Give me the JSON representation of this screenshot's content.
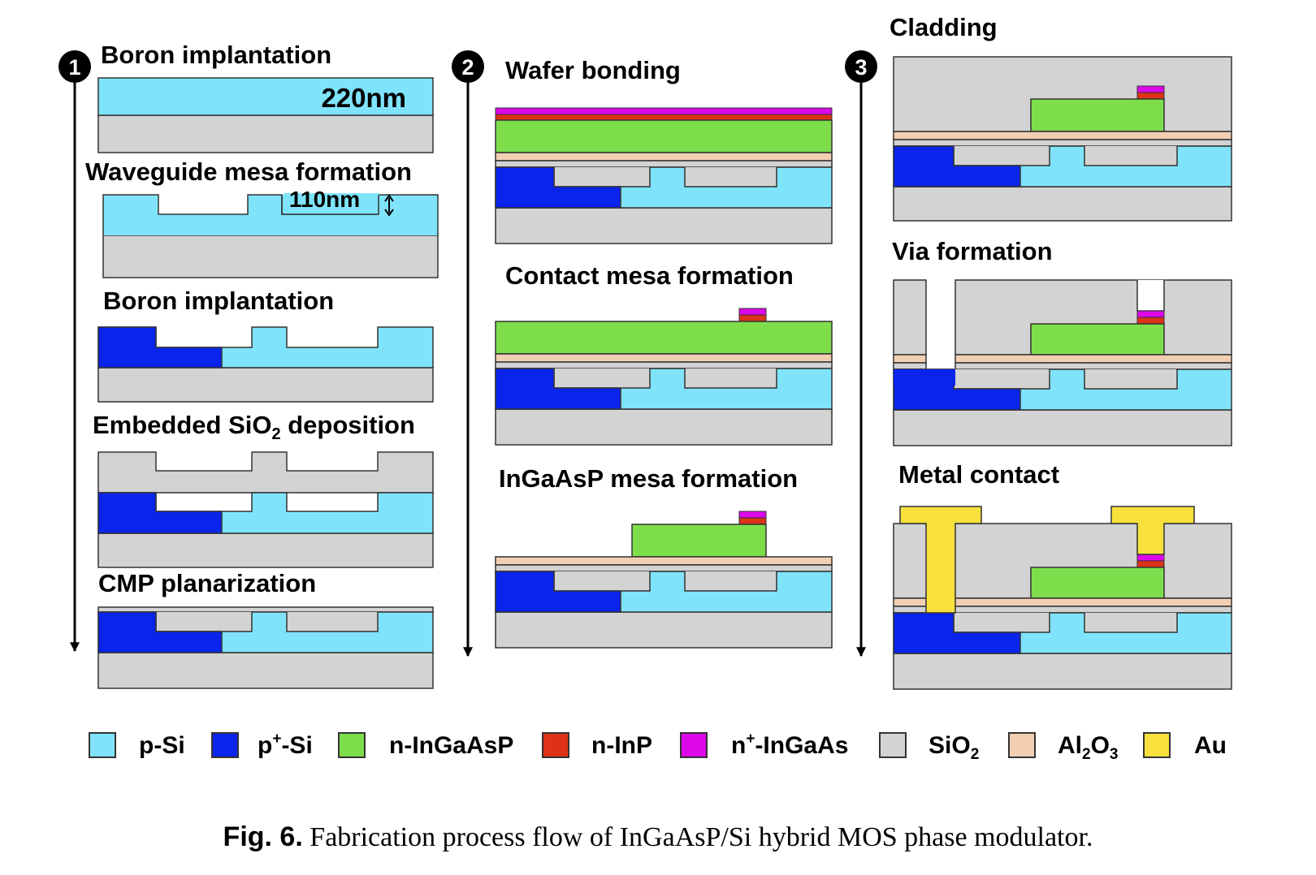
{
  "colors": {
    "p_si": "#7fe4fb",
    "p_plus_si": "#0a24ec",
    "n_ingaasp": "#7ddd4b",
    "n_inp": "#dd3218",
    "n_plus_ingaas": "#dd07ea",
    "sio2": "#d3d3d3",
    "al2o3": "#f2cfb3",
    "au": "#f8e13c",
    "outline": "#333333"
  },
  "columns": [
    {
      "number": "1",
      "steps": [
        {
          "title": "Boron implantation",
          "annotation": "220nm"
        },
        {
          "title": "Waveguide mesa formation",
          "annotation": "110nm"
        },
        {
          "title": "Boron implantation"
        },
        {
          "title_prefix": "Embedded SiO",
          "title_sub": "2",
          "title_suffix": " deposition"
        },
        {
          "title": "CMP planarization"
        }
      ]
    },
    {
      "number": "2",
      "steps": [
        {
          "title": "Wafer bonding"
        },
        {
          "title": "Contact mesa formation"
        },
        {
          "title": "InGaAsP mesa formation"
        }
      ]
    },
    {
      "number": "3",
      "steps": [
        {
          "title": "Cladding"
        },
        {
          "title": "Via formation"
        },
        {
          "title": "Metal contact"
        }
      ]
    }
  ],
  "legend": [
    {
      "label": "p-Si",
      "color": "#7fe4fb"
    },
    {
      "label_base": "p",
      "label_sup": "+",
      "label_suffix": "-Si",
      "color": "#0a24ec"
    },
    {
      "label": "n-InGaAsP",
      "color": "#7ddd4b"
    },
    {
      "label": "n-InP",
      "color": "#dd3218"
    },
    {
      "label_base": "n",
      "label_sup": "+",
      "label_suffix": "-InGaAs",
      "color": "#dd07ea"
    },
    {
      "label_base": "SiO",
      "label_sub": "2",
      "label_suffix": "",
      "color": "#d3d3d3"
    },
    {
      "label_base": "Al",
      "label_sub": "2",
      "label_mid": "O",
      "label_sub2": "3",
      "label_suffix": "",
      "color": "#f2cfb3"
    },
    {
      "label": "Au",
      "color": "#f8e13c"
    }
  ],
  "caption": {
    "label": "Fig. 6.",
    "text": "Fabrication process flow of InGaAsP/Si hybrid MOS phase modulator."
  }
}
